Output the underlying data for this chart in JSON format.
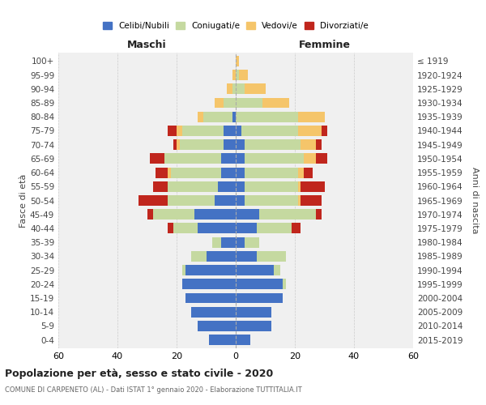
{
  "age_groups": [
    "0-4",
    "5-9",
    "10-14",
    "15-19",
    "20-24",
    "25-29",
    "30-34",
    "35-39",
    "40-44",
    "45-49",
    "50-54",
    "55-59",
    "60-64",
    "65-69",
    "70-74",
    "75-79",
    "80-84",
    "85-89",
    "90-94",
    "95-99",
    "100+"
  ],
  "birth_years": [
    "2015-2019",
    "2010-2014",
    "2005-2009",
    "2000-2004",
    "1995-1999",
    "1990-1994",
    "1985-1989",
    "1980-1984",
    "1975-1979",
    "1970-1974",
    "1965-1969",
    "1960-1964",
    "1955-1959",
    "1950-1954",
    "1945-1949",
    "1940-1944",
    "1935-1939",
    "1930-1934",
    "1925-1929",
    "1920-1924",
    "≤ 1919"
  ],
  "males": {
    "celibi": [
      9,
      13,
      15,
      17,
      18,
      17,
      10,
      5,
      13,
      14,
      7,
      6,
      5,
      5,
      4,
      4,
      1,
      0,
      0,
      0,
      0
    ],
    "coniugati": [
      0,
      0,
      0,
      0,
      0,
      1,
      5,
      3,
      8,
      14,
      16,
      17,
      17,
      19,
      15,
      14,
      10,
      4,
      1,
      0,
      0
    ],
    "vedovi": [
      0,
      0,
      0,
      0,
      0,
      0,
      0,
      0,
      0,
      0,
      0,
      0,
      1,
      0,
      1,
      2,
      2,
      3,
      2,
      1,
      0
    ],
    "divorziati": [
      0,
      0,
      0,
      0,
      0,
      0,
      0,
      0,
      2,
      2,
      10,
      5,
      4,
      5,
      1,
      3,
      0,
      0,
      0,
      0,
      0
    ]
  },
  "females": {
    "nubili": [
      5,
      12,
      12,
      16,
      16,
      13,
      7,
      3,
      7,
      8,
      3,
      3,
      3,
      3,
      3,
      2,
      0,
      0,
      0,
      0,
      0
    ],
    "coniugate": [
      0,
      0,
      0,
      0,
      1,
      2,
      10,
      5,
      12,
      19,
      18,
      18,
      18,
      20,
      19,
      19,
      21,
      9,
      3,
      1,
      0
    ],
    "vedove": [
      0,
      0,
      0,
      0,
      0,
      0,
      0,
      0,
      0,
      0,
      1,
      1,
      2,
      4,
      5,
      8,
      9,
      9,
      7,
      3,
      1
    ],
    "divorziate": [
      0,
      0,
      0,
      0,
      0,
      0,
      0,
      0,
      3,
      2,
      7,
      8,
      3,
      4,
      2,
      2,
      0,
      0,
      0,
      0,
      0
    ]
  },
  "colors": {
    "celibi": "#4472c4",
    "coniugati": "#c5d9a0",
    "vedovi": "#f5c56a",
    "divorziati": "#c0261d"
  },
  "xlim": 60,
  "title": "Popolazione per età, sesso e stato civile - 2020",
  "subtitle": "COMUNE DI CARPENETO (AL) - Dati ISTAT 1° gennaio 2020 - Elaborazione TUTTITALIA.IT",
  "ylabel_left": "Fasce di età",
  "ylabel_right": "Anni di nascita",
  "xlabel_maschi": "Maschi",
  "xlabel_femmine": "Femmine",
  "legend_labels": [
    "Celibi/Nubili",
    "Coniugati/e",
    "Vedovi/e",
    "Divorziati/e"
  ],
  "bg_color": "#f0f0f0"
}
